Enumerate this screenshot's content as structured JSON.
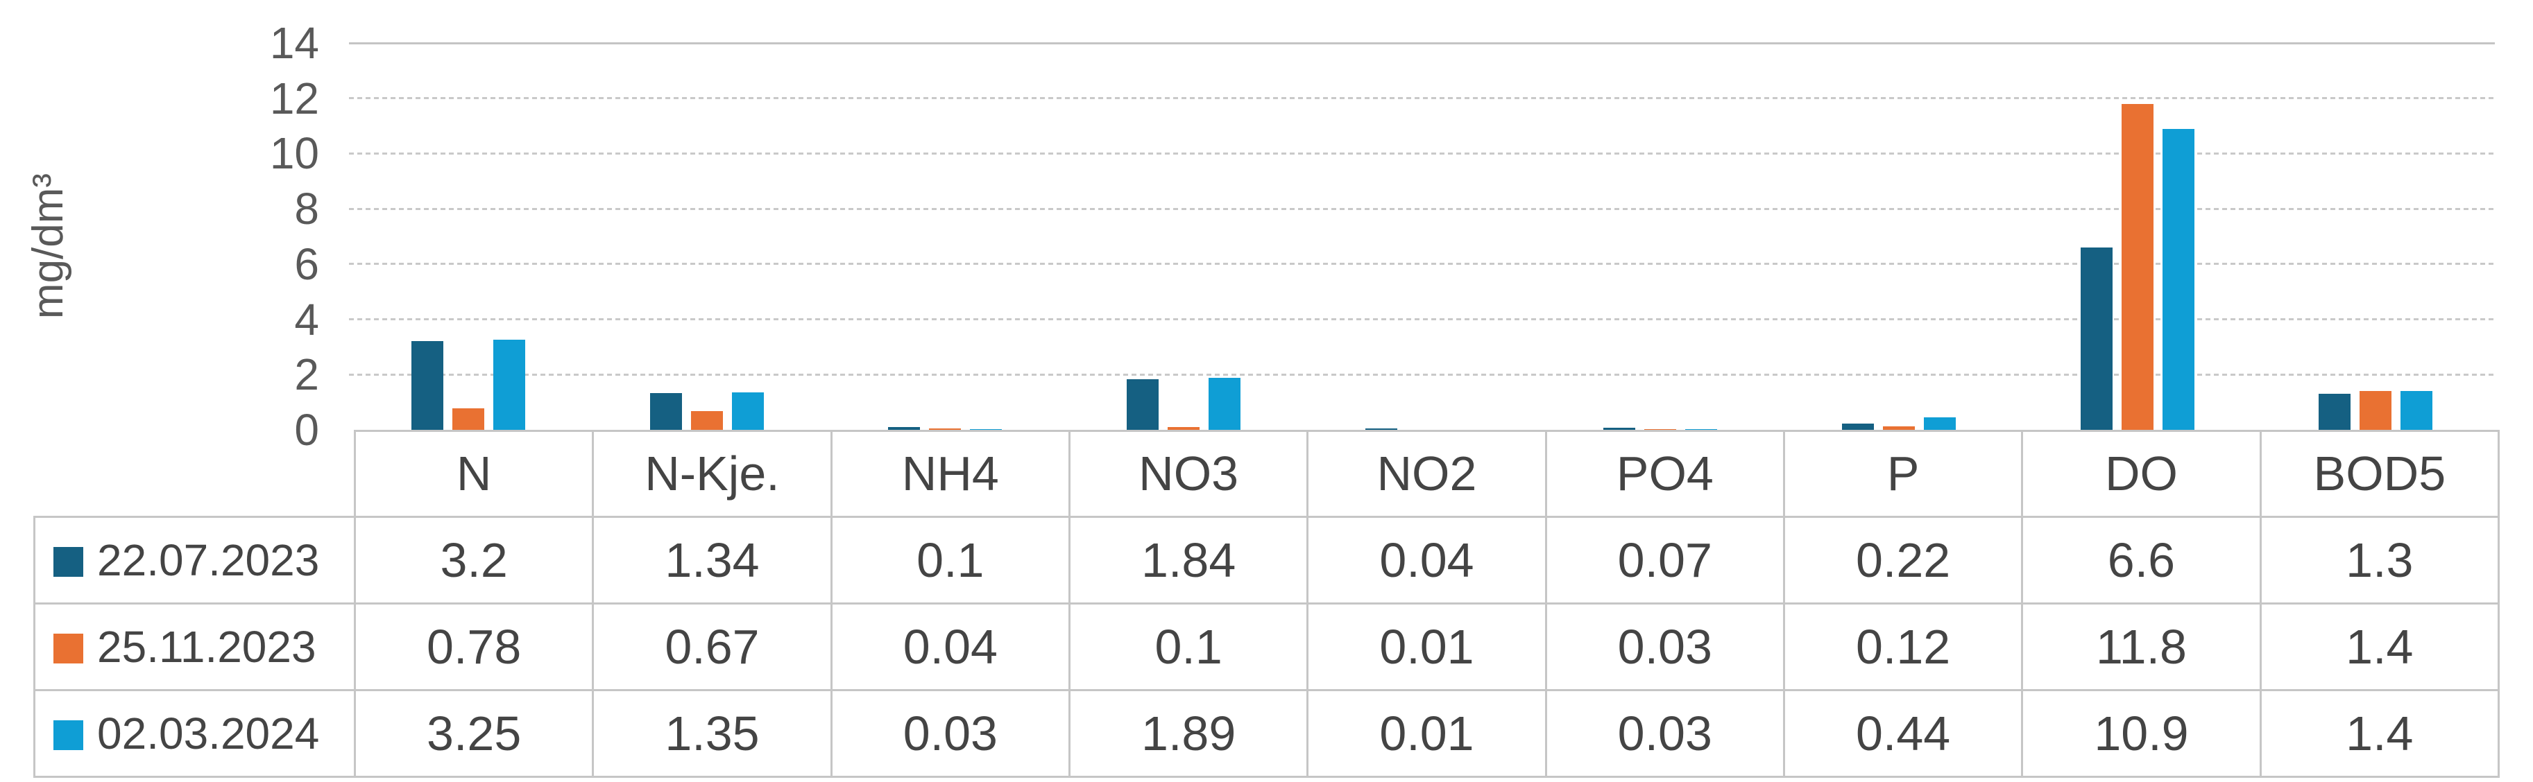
{
  "chart_data": {
    "type": "bar",
    "title": "",
    "ylabel": "mg/dm³",
    "categories": [
      "N",
      "N-Kje.",
      "NH4",
      "NO3",
      "NO2",
      "PO4",
      "P",
      "DO",
      "BOD5"
    ],
    "series": [
      {
        "name": "22.07.2023",
        "color": "#156082",
        "values": [
          3.2,
          1.34,
          0.1,
          1.84,
          0.04,
          0.07,
          0.22,
          6.6,
          1.3
        ]
      },
      {
        "name": "25.11.2023",
        "color": "#E97132",
        "values": [
          0.78,
          0.67,
          0.04,
          0.1,
          0.01,
          0.03,
          0.12,
          11.8,
          1.4
        ]
      },
      {
        "name": "02.03.2024",
        "color": "#0F9ED5",
        "values": [
          3.25,
          1.35,
          0.03,
          1.89,
          0.01,
          0.03,
          0.44,
          10.9,
          1.4
        ]
      }
    ],
    "ylim": [
      0,
      14
    ],
    "yticks": [
      0,
      2,
      4,
      6,
      8,
      10,
      12,
      14
    ],
    "grid": "horizontal",
    "legend_position": "data-table-rows",
    "data_table_shown": true
  },
  "colors": {
    "background": "#FFFFFF",
    "gridline": "#C9C9C9",
    "table_border": "#C6C6C6",
    "table_text": "#444444",
    "axis_text": "#595959"
  }
}
